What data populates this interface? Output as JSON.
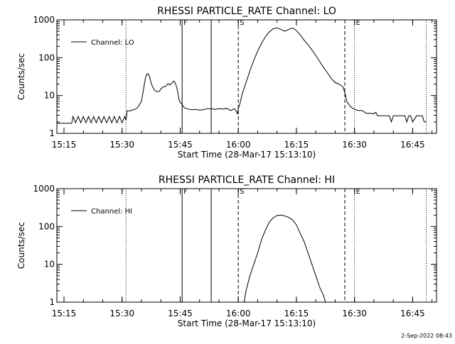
{
  "footer_timestamp": "2-Sep-2022 08:43",
  "chart_data": [
    {
      "type": "line",
      "title": "RHESSI PARTICLE_RATE Channel: LO",
      "xlabel": "Start Time (28-Mar-17 15:13:10)",
      "ylabel": "Counts/sec",
      "yscale": "log",
      "xlim": [
        "15:13:10",
        "16:51:10"
      ],
      "ylim": [
        1,
        1000
      ],
      "x_ticks": [
        "15:15",
        "15:30",
        "15:45",
        "16:00",
        "16:15",
        "16:30",
        "16:45"
      ],
      "y_ticks": [
        "1",
        "10",
        "100",
        "1000"
      ],
      "legend": "top-left",
      "grid": false,
      "markers": [
        {
          "time": "15:31:00",
          "style": "dotted",
          "label": ""
        },
        {
          "time": "15:45:30",
          "style": "solid",
          "label": "F"
        },
        {
          "time": "15:53:00",
          "style": "solid",
          "label": ""
        },
        {
          "time": "16:00:00",
          "style": "dashed",
          "label": "S"
        },
        {
          "time": "16:27:30",
          "style": "dashed",
          "label": ""
        },
        {
          "time": "16:30:00",
          "style": "dotted",
          "label": "E"
        },
        {
          "time": "16:48:30",
          "style": "dotted",
          "label": ""
        }
      ],
      "series": [
        {
          "name": "Channel: LO",
          "x": [
            "15:13:10",
            "15:17:00",
            "15:17:20",
            "15:18:00",
            "15:18:40",
            "15:19:20",
            "15:20:00",
            "15:20:40",
            "15:21:20",
            "15:22:00",
            "15:22:40",
            "15:23:20",
            "15:24:00",
            "15:24:40",
            "15:25:20",
            "15:26:00",
            "15:26:40",
            "15:27:20",
            "15:28:00",
            "15:28:40",
            "15:29:20",
            "15:30:00",
            "15:30:40",
            "15:31:00",
            "15:31:20",
            "15:32:00",
            "15:32:20",
            "15:32:40",
            "15:33:00",
            "15:33:20",
            "15:34:00",
            "15:35:00",
            "15:35:20",
            "15:36:00",
            "15:36:20",
            "15:36:40",
            "15:37:00",
            "15:37:40",
            "15:38:20",
            "15:39:00",
            "15:39:40",
            "15:40:00",
            "15:40:40",
            "15:41:20",
            "15:41:40",
            "15:42:00",
            "15:42:20",
            "15:43:00",
            "15:43:20",
            "15:43:40",
            "15:44:00",
            "15:44:20",
            "15:44:40",
            "15:45:00",
            "15:45:30",
            "15:46:00",
            "15:47:00",
            "15:48:00",
            "15:49:00",
            "15:50:00",
            "15:51:00",
            "15:52:00",
            "15:53:00",
            "15:54:00",
            "15:55:00",
            "15:56:00",
            "15:57:00",
            "15:58:00",
            "15:59:00",
            "15:59:30",
            "15:59:45",
            "16:00:00",
            "16:00:30",
            "16:01:00",
            "16:02:00",
            "16:03:00",
            "16:04:00",
            "16:05:00",
            "16:06:00",
            "16:07:00",
            "16:08:00",
            "16:09:00",
            "16:10:00",
            "16:11:00",
            "16:12:00",
            "16:13:00",
            "16:14:00",
            "16:15:00",
            "16:16:00",
            "16:17:00",
            "16:18:00",
            "16:19:00",
            "16:20:00",
            "16:21:00",
            "16:22:00",
            "16:23:00",
            "16:24:00",
            "16:25:00",
            "16:26:00",
            "16:27:00",
            "16:27:30",
            "16:28:00",
            "16:29:00",
            "16:30:00",
            "16:31:00",
            "16:32:00",
            "16:33:00",
            "16:34:00",
            "16:35:00",
            "16:35:30",
            "16:36:00",
            "16:37:00",
            "16:38:00",
            "16:39:00",
            "16:39:30",
            "16:40:00",
            "16:40:30",
            "16:41:00",
            "16:42:00",
            "16:43:00",
            "16:43:30",
            "16:44:00",
            "16:44:30",
            "16:45:00",
            "16:46:00",
            "16:47:00",
            "16:47:30",
            "16:48:00",
            "16:48:30"
          ],
          "y": [
            1.85,
            1.85,
            2.8,
            1.9,
            2.8,
            1.9,
            2.8,
            1.9,
            2.8,
            1.9,
            2.8,
            1.9,
            2.8,
            1.9,
            2.8,
            1.9,
            2.8,
            1.9,
            2.8,
            1.9,
            2.8,
            1.9,
            2.8,
            2.2,
            4.0,
            3.9,
            4.0,
            4.2,
            4.2,
            4.3,
            4.8,
            7.0,
            11.0,
            28.0,
            36.0,
            38.0,
            33.0,
            19.0,
            14.0,
            12.5,
            13.0,
            15.0,
            17.0,
            17.5,
            20.0,
            20.5,
            19.0,
            22.0,
            24.0,
            22.0,
            18.0,
            13.0,
            8.0,
            6.5,
            5.8,
            4.8,
            4.4,
            4.2,
            4.3,
            4.1,
            4.2,
            4.5,
            4.5,
            4.3,
            4.5,
            4.4,
            4.6,
            4.0,
            4.5,
            3.8,
            3.3,
            4.5,
            6.5,
            11.0,
            22.0,
            45.0,
            85.0,
            150.0,
            240.0,
            360.0,
            480.0,
            580.0,
            620.0,
            560.0,
            500.0,
            560.0,
            610.0,
            520.0,
            400.0,
            290.0,
            220.0,
            160.0,
            115.0,
            80.0,
            55.0,
            40.0,
            28.0,
            22.0,
            20.0,
            17.0,
            12.0,
            7.0,
            5.0,
            4.3,
            4.0,
            4.0,
            3.4,
            3.4,
            3.3,
            3.6,
            2.9,
            2.9,
            2.9,
            2.9,
            2.0,
            2.9,
            2.9,
            2.9,
            2.9,
            2.9,
            2.0,
            2.9,
            2.9,
            2.0,
            2.9,
            2.9,
            2.9,
            2.0,
            2.0
          ]
        }
      ]
    },
    {
      "type": "line",
      "title": "RHESSI PARTICLE_RATE Channel: HI",
      "xlabel": "Start Time (28-Mar-17 15:13:10)",
      "ylabel": "Counts/sec",
      "yscale": "log",
      "xlim": [
        "15:13:10",
        "16:51:10"
      ],
      "ylim": [
        1,
        1000
      ],
      "x_ticks": [
        "15:15",
        "15:30",
        "15:45",
        "16:00",
        "16:15",
        "16:30",
        "16:45"
      ],
      "y_ticks": [
        "1",
        "10",
        "100",
        "1000"
      ],
      "legend": "top-left",
      "grid": false,
      "markers": [
        {
          "time": "15:31:00",
          "style": "dotted",
          "label": ""
        },
        {
          "time": "15:45:30",
          "style": "solid",
          "label": "F"
        },
        {
          "time": "15:53:00",
          "style": "solid",
          "label": ""
        },
        {
          "time": "16:00:00",
          "style": "dashed",
          "label": "S"
        },
        {
          "time": "16:27:30",
          "style": "dashed",
          "label": ""
        },
        {
          "time": "16:30:00",
          "style": "dotted",
          "label": "E"
        },
        {
          "time": "16:48:30",
          "style": "dotted",
          "label": ""
        }
      ],
      "series": [
        {
          "name": "Channel: HI",
          "x": [
            "16:01:30",
            "16:02:00",
            "16:03:00",
            "16:04:00",
            "16:05:00",
            "16:06:00",
            "16:07:00",
            "16:08:00",
            "16:09:00",
            "16:10:00",
            "16:11:00",
            "16:12:00",
            "16:13:00",
            "16:14:00",
            "16:15:00",
            "16:16:00",
            "16:17:00",
            "16:18:00",
            "16:19:00",
            "16:20:00",
            "16:21:00",
            "16:22:00",
            "16:22:30"
          ],
          "y": [
            1.0,
            2.0,
            5.0,
            10.0,
            20.0,
            45.0,
            80.0,
            130.0,
            170.0,
            195.0,
            200.0,
            190.0,
            175.0,
            150.0,
            110.0,
            65.0,
            40.0,
            20.0,
            10.0,
            5.0,
            2.5,
            1.5,
            1.0
          ]
        }
      ]
    }
  ]
}
